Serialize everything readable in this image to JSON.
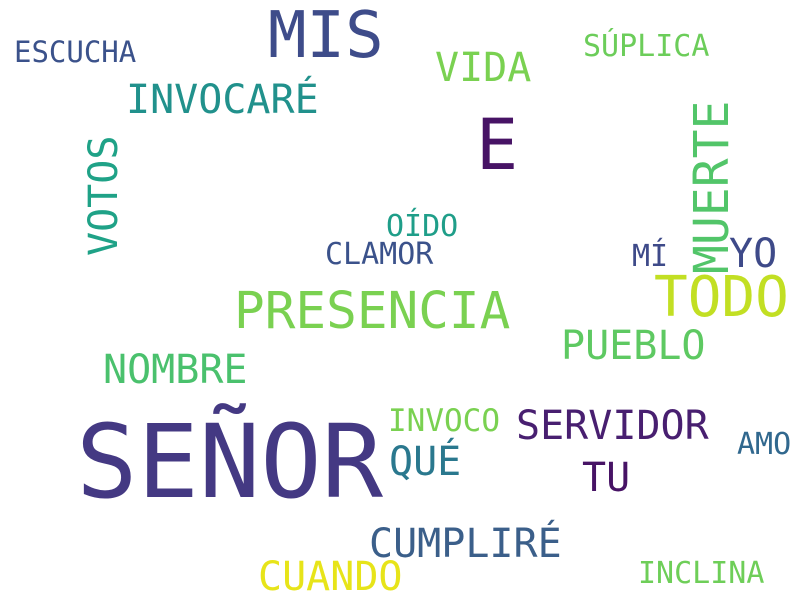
{
  "words": [
    {
      "text": "SEÑOR",
      "color": "#443983"
    },
    {
      "text": "MIS",
      "color": "#3e4c8a"
    },
    {
      "text": "E",
      "color": "#471365"
    },
    {
      "text": "PRESENCIA",
      "color": "#7ad151"
    },
    {
      "text": "TODO",
      "color": "#c2df23"
    },
    {
      "text": "MUERTE",
      "color": "#52c569"
    },
    {
      "text": "VOTOS",
      "color": "#1fa287"
    },
    {
      "text": "INVOCARÉ",
      "color": "#21918c"
    },
    {
      "text": "VIDA",
      "color": "#7ad151"
    },
    {
      "text": "SÚPLICA",
      "color": "#6ccd5a"
    },
    {
      "text": "ESCUCHA",
      "color": "#3b528b"
    },
    {
      "text": "OÍDO",
      "color": "#1f9e89"
    },
    {
      "text": "CLAMOR",
      "color": "#3b528b"
    },
    {
      "text": "MÍ",
      "color": "#3e4a89"
    },
    {
      "text": "YO",
      "color": "#3e4a89"
    },
    {
      "text": "PUEBLO",
      "color": "#5ec962"
    },
    {
      "text": "NOMBRE",
      "color": "#4ac16d"
    },
    {
      "text": "INVOCO",
      "color": "#7ad151"
    },
    {
      "text": "SERVIDOR",
      "color": "#481f70"
    },
    {
      "text": "QUÉ",
      "color": "#2a788e"
    },
    {
      "text": "TU",
      "color": "#471365"
    },
    {
      "text": "AMO",
      "color": "#31688e"
    },
    {
      "text": "CUMPLIRÉ",
      "color": "#3b5f8a"
    },
    {
      "text": "CUANDO",
      "color": "#e7e419"
    },
    {
      "text": "INCLINA",
      "color": "#6ece58"
    }
  ]
}
